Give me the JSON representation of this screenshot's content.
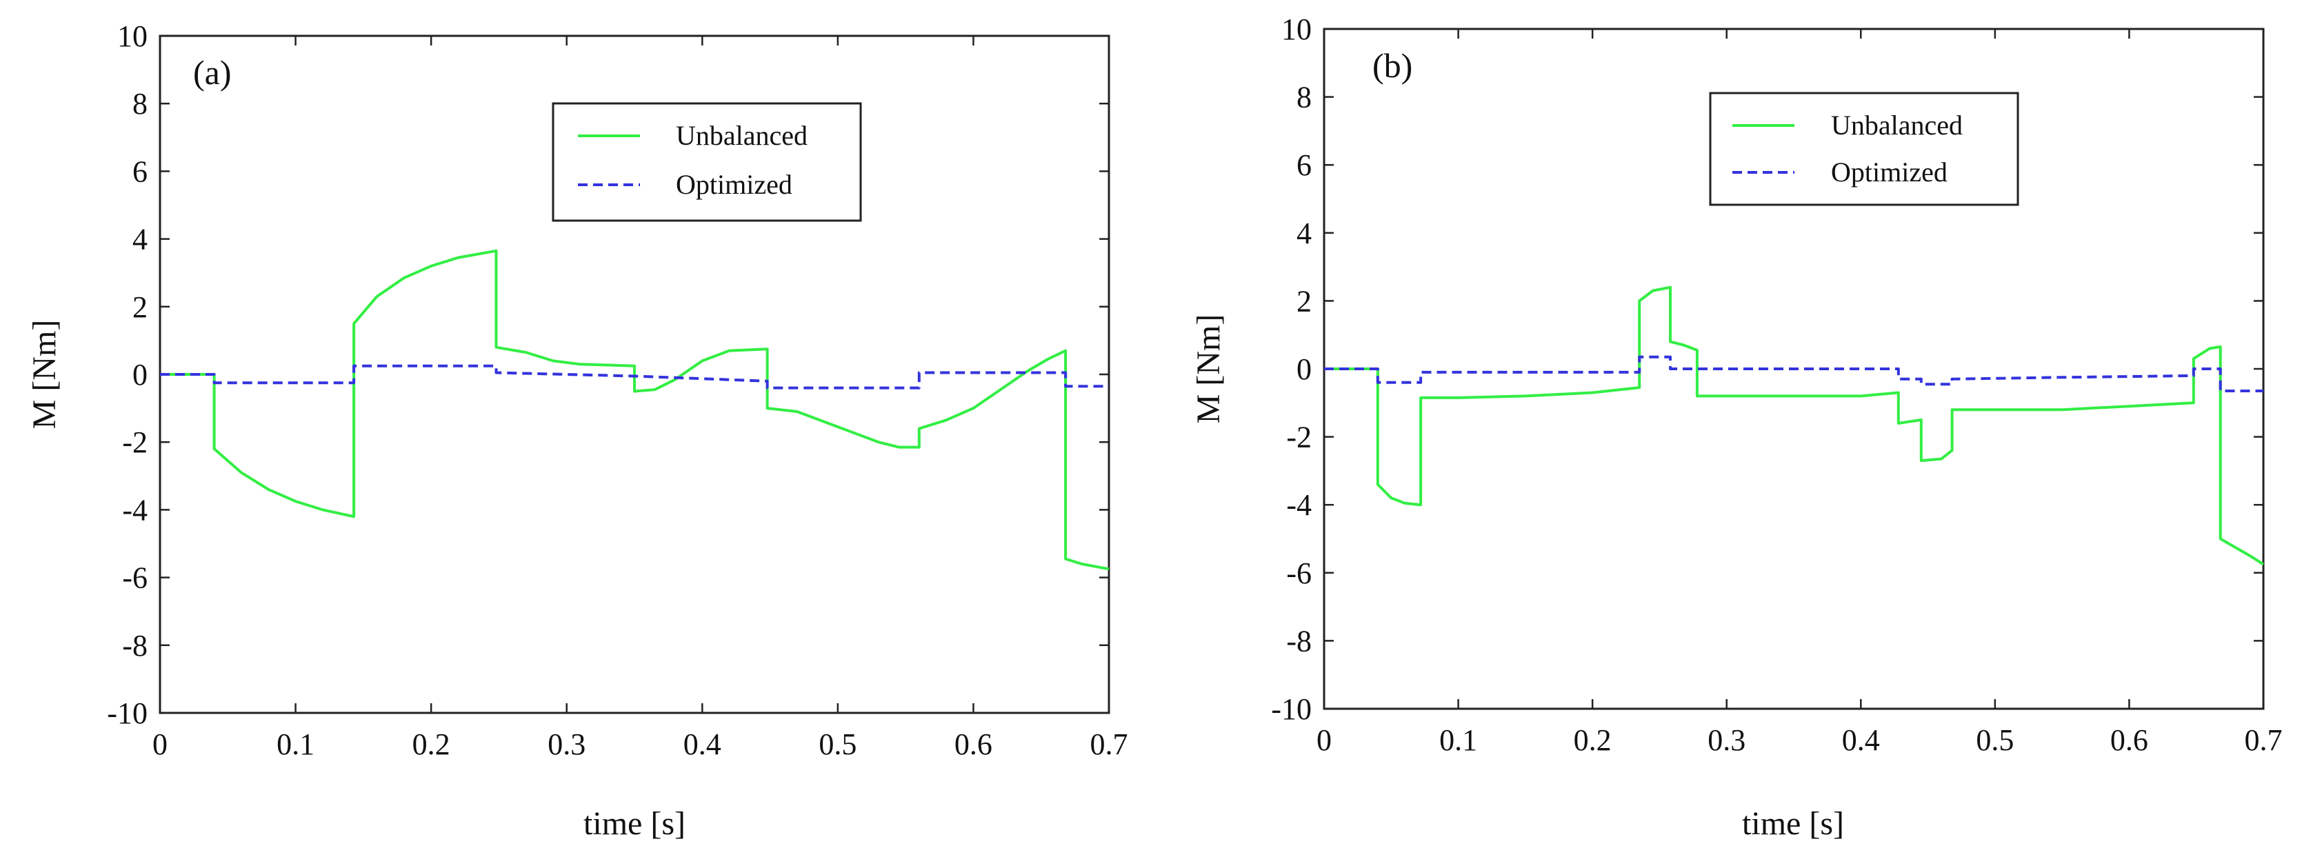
{
  "chart_data": [
    {
      "type": "line",
      "panel_label": "(a)",
      "xlabel": "time [s]",
      "ylabel": "M [Nm]",
      "xlim": [
        0,
        0.7
      ],
      "ylim": [
        -10,
        10
      ],
      "xticks": [
        0,
        0.1,
        0.2,
        0.3,
        0.4,
        0.5,
        0.6,
        0.7
      ],
      "xtick_labels": [
        "0",
        "0.1",
        "0.2",
        "0.3",
        "0.4",
        "0.5",
        "0.6",
        "0.7"
      ],
      "yticks": [
        10,
        8,
        6,
        4,
        2,
        0,
        -2,
        -4,
        -6,
        -8,
        -10
      ],
      "ytick_labels": [
        "10",
        "8",
        "6",
        "4",
        "2",
        "0",
        "-2",
        "-4",
        "-6",
        "-8",
        "-10"
      ],
      "legend_position": "top-center",
      "series": [
        {
          "name": "Unbalanced",
          "color": "#33ee44",
          "dash": "solid",
          "points": [
            [
              0,
              0
            ],
            [
              0.04,
              0
            ],
            [
              0.04,
              -2.2
            ],
            [
              0.06,
              -2.9
            ],
            [
              0.08,
              -3.4
            ],
            [
              0.1,
              -3.75
            ],
            [
              0.12,
              -4.0
            ],
            [
              0.143,
              -4.2
            ],
            [
              0.143,
              1.5
            ],
            [
              0.16,
              2.3
            ],
            [
              0.18,
              2.85
            ],
            [
              0.2,
              3.2
            ],
            [
              0.22,
              3.45
            ],
            [
              0.248,
              3.65
            ],
            [
              0.248,
              0.8
            ],
            [
              0.27,
              0.65
            ],
            [
              0.29,
              0.4
            ],
            [
              0.31,
              0.3
            ],
            [
              0.35,
              0.25
            ],
            [
              0.35,
              -0.5
            ],
            [
              0.365,
              -0.45
            ],
            [
              0.38,
              -0.15
            ],
            [
              0.4,
              0.4
            ],
            [
              0.42,
              0.7
            ],
            [
              0.448,
              0.75
            ],
            [
              0.448,
              -1.0
            ],
            [
              0.47,
              -1.1
            ],
            [
              0.5,
              -1.55
            ],
            [
              0.53,
              -2.0
            ],
            [
              0.545,
              -2.15
            ],
            [
              0.56,
              -2.15
            ],
            [
              0.56,
              -1.6
            ],
            [
              0.58,
              -1.35
            ],
            [
              0.6,
              -1.0
            ],
            [
              0.62,
              -0.45
            ],
            [
              0.64,
              0.1
            ],
            [
              0.655,
              0.45
            ],
            [
              0.668,
              0.7
            ],
            [
              0.668,
              -5.45
            ],
            [
              0.68,
              -5.6
            ],
            [
              0.7,
              -5.75
            ]
          ]
        },
        {
          "name": "Optimized",
          "color": "#3333dd",
          "dash": "dashed",
          "points": [
            [
              0,
              0
            ],
            [
              0.04,
              0
            ],
            [
              0.04,
              -0.25
            ],
            [
              0.143,
              -0.25
            ],
            [
              0.143,
              0.25
            ],
            [
              0.248,
              0.25
            ],
            [
              0.248,
              0.05
            ],
            [
              0.35,
              -0.05
            ],
            [
              0.448,
              -0.2
            ],
            [
              0.448,
              -0.4
            ],
            [
              0.56,
              -0.4
            ],
            [
              0.56,
              0.05
            ],
            [
              0.668,
              0.05
            ],
            [
              0.668,
              -0.35
            ],
            [
              0.7,
              -0.35
            ]
          ]
        }
      ]
    },
    {
      "type": "line",
      "panel_label": "(b)",
      "xlabel": "time [s]",
      "ylabel": "M [Nm]",
      "xlim": [
        0,
        0.7
      ],
      "ylim": [
        -10,
        10
      ],
      "xticks": [
        0,
        0.1,
        0.2,
        0.3,
        0.4,
        0.5,
        0.6,
        0.7
      ],
      "xtick_labels": [
        "0",
        "0.1",
        "0.2",
        "0.3",
        "0.4",
        "0.5",
        "0.6",
        "0.7"
      ],
      "yticks": [
        10,
        8,
        6,
        4,
        2,
        0,
        -2,
        -4,
        -6,
        -8,
        -10
      ],
      "ytick_labels": [
        "10",
        "8",
        "6",
        "4",
        "2",
        "0",
        "-2",
        "-4",
        "-6",
        "-8",
        "-10"
      ],
      "legend_position": "top-center",
      "series": [
        {
          "name": "Unbalanced",
          "color": "#33ee44",
          "dash": "solid",
          "points": [
            [
              0,
              0
            ],
            [
              0.04,
              0
            ],
            [
              0.04,
              -3.4
            ],
            [
              0.05,
              -3.8
            ],
            [
              0.06,
              -3.95
            ],
            [
              0.072,
              -4.0
            ],
            [
              0.072,
              -0.85
            ],
            [
              0.1,
              -0.85
            ],
            [
              0.15,
              -0.8
            ],
            [
              0.2,
              -0.7
            ],
            [
              0.235,
              -0.55
            ],
            [
              0.235,
              2.0
            ],
            [
              0.245,
              2.3
            ],
            [
              0.258,
              2.4
            ],
            [
              0.258,
              0.8
            ],
            [
              0.268,
              0.7
            ],
            [
              0.278,
              0.55
            ],
            [
              0.278,
              -0.8
            ],
            [
              0.35,
              -0.8
            ],
            [
              0.4,
              -0.8
            ],
            [
              0.428,
              -0.7
            ],
            [
              0.428,
              -1.6
            ],
            [
              0.445,
              -1.5
            ],
            [
              0.445,
              -2.7
            ],
            [
              0.46,
              -2.65
            ],
            [
              0.468,
              -2.4
            ],
            [
              0.468,
              -1.2
            ],
            [
              0.55,
              -1.2
            ],
            [
              0.6,
              -1.1
            ],
            [
              0.648,
              -1.0
            ],
            [
              0.648,
              0.3
            ],
            [
              0.66,
              0.6
            ],
            [
              0.668,
              0.65
            ],
            [
              0.668,
              -5.0
            ],
            [
              0.69,
              -5.5
            ],
            [
              0.7,
              -5.75
            ]
          ]
        },
        {
          "name": "Optimized",
          "color": "#3333dd",
          "dash": "dashed",
          "points": [
            [
              0,
              0
            ],
            [
              0.04,
              0
            ],
            [
              0.04,
              -0.4
            ],
            [
              0.072,
              -0.4
            ],
            [
              0.072,
              -0.1
            ],
            [
              0.235,
              -0.1
            ],
            [
              0.235,
              0.35
            ],
            [
              0.258,
              0.35
            ],
            [
              0.258,
              0.0
            ],
            [
              0.428,
              0.0
            ],
            [
              0.428,
              -0.3
            ],
            [
              0.445,
              -0.3
            ],
            [
              0.445,
              -0.45
            ],
            [
              0.468,
              -0.45
            ],
            [
              0.468,
              -0.3
            ],
            [
              0.55,
              -0.25
            ],
            [
              0.648,
              -0.2
            ],
            [
              0.648,
              0.0
            ],
            [
              0.668,
              0.0
            ],
            [
              0.668,
              -0.65
            ],
            [
              0.7,
              -0.65
            ]
          ]
        }
      ]
    }
  ]
}
